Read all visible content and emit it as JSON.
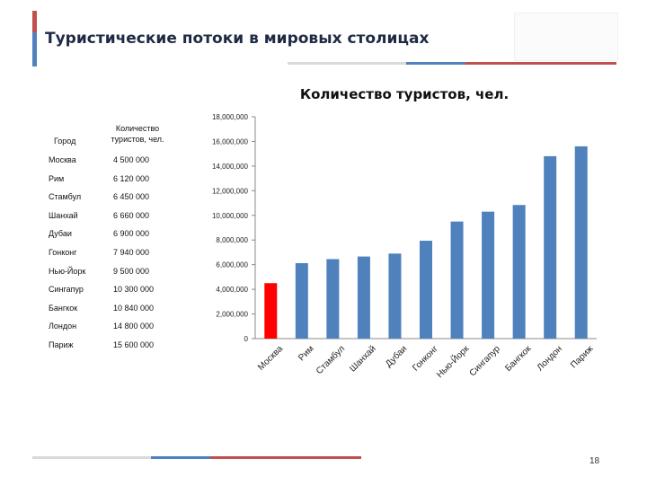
{
  "slide": {
    "title": "Туристические потоки в мировых столицах",
    "page_number": "18"
  },
  "colors": {
    "accent_red": "#c0504d",
    "accent_blue": "#4f81bd",
    "accent_grey": "#d9d9d9",
    "bar_blue": "#4f81bd",
    "bar_highlight": "#ff0000",
    "title_text": "#1f2a44"
  },
  "table": {
    "header_city": "Город",
    "header_value_line1": "Количество",
    "header_value_line2": "туристов, чел.",
    "rows": [
      {
        "city": "Москва",
        "value": "4 500 000"
      },
      {
        "city": "Рим",
        "value": "6 120 000"
      },
      {
        "city": "Стамбул",
        "value": "6 450 000"
      },
      {
        "city": "Шанхай",
        "value": "6 660 000"
      },
      {
        "city": "Дубаи",
        "value": "6 900 000"
      },
      {
        "city": "Гонконг",
        "value": "7 940 000"
      },
      {
        "city": "Нью-Йорк",
        "value": "9 500 000"
      },
      {
        "city": "Сингапур",
        "value": "10 300 000"
      },
      {
        "city": "Бангкок",
        "value": "10 840 000"
      },
      {
        "city": "Лондон",
        "value": "14 800 000"
      },
      {
        "city": "Париж",
        "value": "15 600 000"
      }
    ]
  },
  "chart_data": {
    "type": "bar",
    "title": "Количество туристов, чел.",
    "categories": [
      "Москва",
      "Рим",
      "Стамбул",
      "Шанхай",
      "Дубаи",
      "Гонконг",
      "Нью-Йорк",
      "Сингапур",
      "Бангкок",
      "Лондон",
      "Париж"
    ],
    "values": [
      4500000,
      6120000,
      6450000,
      6660000,
      6900000,
      7940000,
      9500000,
      10300000,
      10840000,
      14800000,
      15600000
    ],
    "highlight_category": "Москва",
    "ylim": [
      0,
      18000000
    ],
    "yticks": [
      0,
      2000000,
      4000000,
      6000000,
      8000000,
      10000000,
      12000000,
      14000000,
      16000000,
      18000000
    ],
    "ytick_labels": [
      "0",
      "2,000,000",
      "4,000,000",
      "6,000,000",
      "8,000,000",
      "10,000,000",
      "12,000,000",
      "14,000,000",
      "16,000,000",
      "18,000,000"
    ],
    "xlabel": "",
    "ylabel": "",
    "grid": false,
    "legend": "none",
    "x_label_rotation": "diagonal"
  }
}
